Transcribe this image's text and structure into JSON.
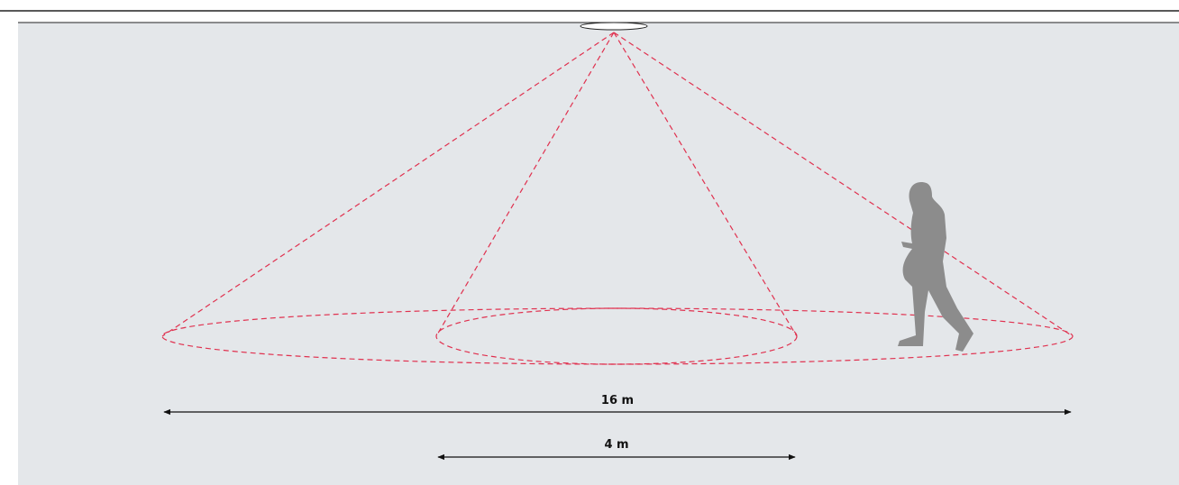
{
  "dimensions": [
    {
      "label": "16 m"
    },
    {
      "label": "4 m"
    }
  ]
}
